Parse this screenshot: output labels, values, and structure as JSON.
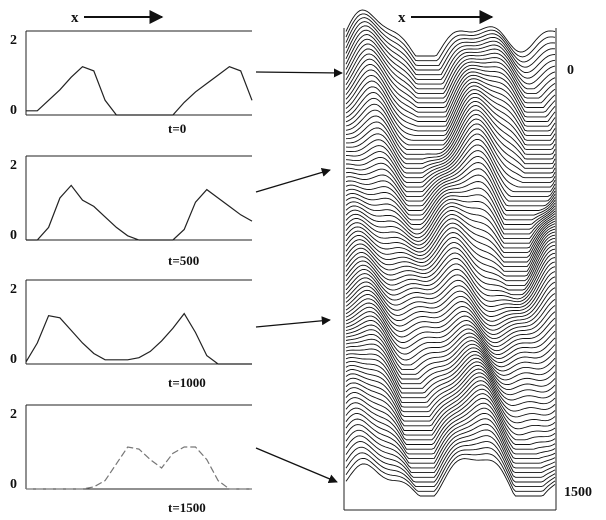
{
  "chart_data": [
    {
      "type": "line",
      "label": "t=0",
      "xlabel": "x",
      "ylim": [
        0,
        2
      ],
      "y_ticks": [
        "0",
        "2"
      ],
      "x": [
        0,
        5,
        10,
        15,
        20,
        25,
        30,
        35,
        40,
        45,
        50,
        55,
        60,
        65,
        70,
        75,
        80,
        85,
        90,
        95,
        100
      ],
      "values": [
        0.1,
        0.1,
        0.35,
        0.6,
        0.9,
        1.15,
        1.05,
        0.35,
        0.0,
        0.0,
        0.0,
        0.0,
        0.0,
        0.0,
        0.3,
        0.55,
        0.75,
        0.95,
        1.15,
        1.05,
        0.35
      ]
    },
    {
      "type": "line",
      "label": "t=500",
      "xlabel": "",
      "ylim": [
        0,
        2
      ],
      "y_ticks": [
        "0",
        "2"
      ],
      "x": [
        0,
        5,
        10,
        15,
        20,
        25,
        30,
        35,
        40,
        45,
        50,
        55,
        60,
        65,
        70,
        75,
        80,
        85,
        90,
        95,
        100
      ],
      "values": [
        0.0,
        0.0,
        0.3,
        1.0,
        1.3,
        0.95,
        0.8,
        0.55,
        0.3,
        0.1,
        0.0,
        0.0,
        0.0,
        0.0,
        0.25,
        0.9,
        1.2,
        1.0,
        0.8,
        0.6,
        0.45
      ]
    },
    {
      "type": "line",
      "label": "t=1000",
      "xlabel": "",
      "ylim": [
        0,
        2
      ],
      "y_ticks": [
        "0",
        "2"
      ],
      "x": [
        0,
        5,
        10,
        15,
        20,
        25,
        30,
        35,
        40,
        45,
        50,
        55,
        60,
        65,
        70,
        75,
        80,
        85,
        90,
        95,
        100
      ],
      "values": [
        0.05,
        0.5,
        1.15,
        1.1,
        0.8,
        0.5,
        0.25,
        0.1,
        0.1,
        0.1,
        0.15,
        0.3,
        0.55,
        0.85,
        1.2,
        0.75,
        0.2,
        0.0,
        0.0,
        0.0,
        0.0
      ]
    },
    {
      "type": "line",
      "label": "t=1500",
      "xlabel": "",
      "ylim": [
        0,
        2
      ],
      "y_ticks": [
        "0",
        "2"
      ],
      "x": [
        0,
        5,
        10,
        15,
        20,
        25,
        30,
        35,
        40,
        45,
        50,
        55,
        60,
        65,
        70,
        75,
        80,
        85,
        90,
        95,
        100
      ],
      "values": [
        0.0,
        0.0,
        0.0,
        0.0,
        0.0,
        0.0,
        0.05,
        0.2,
        0.6,
        1.0,
        0.95,
        0.7,
        0.5,
        0.85,
        1.0,
        1.0,
        0.7,
        0.2,
        0.0,
        0.0,
        0.0
      ]
    },
    {
      "type": "area",
      "chart_kind": "waterfall",
      "xlabel": "x",
      "time_ticks": [
        "0",
        "1500"
      ],
      "time_range": [
        0,
        1500
      ]
    }
  ]
}
